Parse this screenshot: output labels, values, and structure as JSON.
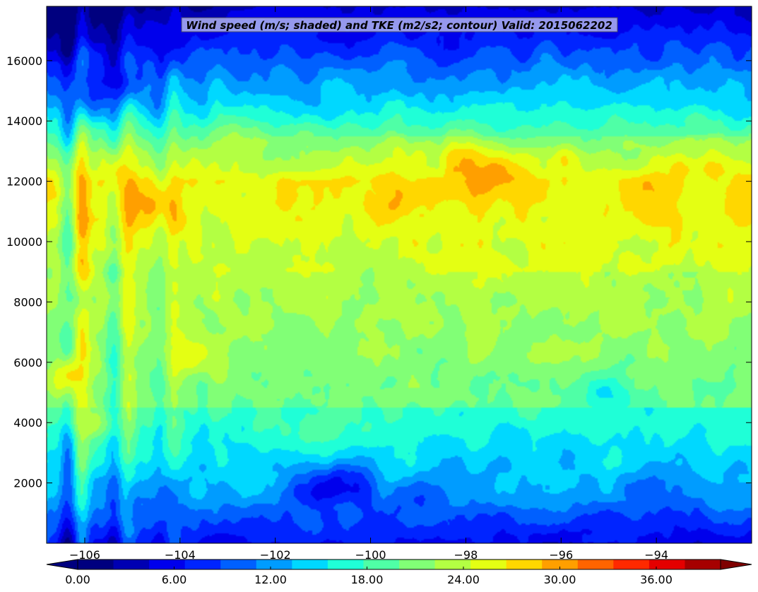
{
  "chart_data": {
    "type": "heatmap",
    "title": "Wind speed (m/s; shaded) and TKE (m2/s2; contour) Valid: 2015062202",
    "xlabel": "",
    "ylabel": "",
    "xlim": [
      -106.8,
      -92.0
    ],
    "ylim": [
      0,
      17800
    ],
    "x_ticks": [
      -106,
      -104,
      -102,
      -100,
      -98,
      -96,
      -94
    ],
    "x_tick_labels": [
      "−106",
      "−104",
      "−102",
      "−100",
      "−98",
      "−96",
      "−94"
    ],
    "y_ticks": [
      2000,
      4000,
      6000,
      8000,
      10000,
      12000,
      14000,
      16000
    ],
    "y_tick_labels": [
      "2000",
      "4000",
      "6000",
      "8000",
      "10000",
      "12000",
      "14000",
      "16000"
    ],
    "colorbar": {
      "levels": [
        0,
        2,
        4,
        6,
        8,
        10,
        12,
        14,
        16,
        18,
        20,
        22,
        24,
        26,
        28,
        30,
        32,
        34,
        36,
        38,
        40
      ],
      "tick_values": [
        0,
        6,
        12,
        18,
        24,
        30,
        36
      ],
      "tick_labels": [
        "0.00",
        "6.00",
        "12.00",
        "18.00",
        "24.00",
        "30.00",
        "36.00"
      ],
      "extend": "both",
      "colormap": "jet",
      "colors": [
        "#00007f",
        "#0000b2",
        "#0000ec",
        "#0024ff",
        "#0060ff",
        "#009cff",
        "#00d8ff",
        "#1fffd7",
        "#4fffa6",
        "#81ff76",
        "#b3ff43",
        "#e4ff13",
        "#ffd700",
        "#ff9f00",
        "#ff6400",
        "#ff2900",
        "#e40000",
        "#a60000"
      ],
      "under_color": "#00007f",
      "over_color": "#7f0000"
    },
    "features": [
      {
        "x": -104.7,
        "y": 11200,
        "value": 30
      },
      {
        "x": -98,
        "y": 12600,
        "value": 30
      },
      {
        "x": -97.5,
        "y": 12000,
        "value": 30
      },
      {
        "x": -93.4,
        "y": 12300,
        "value": 28
      },
      {
        "x": -106.3,
        "y": 5500,
        "value": 28
      },
      {
        "x": -103.8,
        "y": 6200,
        "value": 28
      },
      {
        "x": -99.7,
        "y": 11500,
        "value": 28
      },
      {
        "x": -101.9,
        "y": 11300,
        "value": 27
      },
      {
        "x": -105.3,
        "y": 12200,
        "value": 27
      },
      {
        "x": -99,
        "y": 12700,
        "value": 26
      },
      {
        "x": -96,
        "y": 12500,
        "value": 26
      },
      {
        "x": -103,
        "y": 13200,
        "value": 24
      },
      {
        "x": -100,
        "y": 9000,
        "value": 22
      },
      {
        "x": -101,
        "y": 3800,
        "value": 20
      },
      {
        "x": -95,
        "y": 4800,
        "value": 14
      },
      {
        "x": -96,
        "y": 3000,
        "value": 14
      },
      {
        "x": -100.5,
        "y": 1900,
        "value": 4
      },
      {
        "x": -101.2,
        "y": 1600,
        "value": 6
      },
      {
        "x": -99,
        "y": 1400,
        "value": 8
      },
      {
        "x": -94,
        "y": 1800,
        "value": 10
      },
      {
        "x": -104.5,
        "y": 1500,
        "value": 10
      },
      {
        "x": -100.5,
        "y": 16800,
        "value": 6
      },
      {
        "x": -98.5,
        "y": 16600,
        "value": 6
      },
      {
        "x": -104.5,
        "y": 17000,
        "value": 6
      },
      {
        "x": -105.5,
        "y": 15200,
        "value": 6
      },
      {
        "x": -106.1,
        "y": 15000,
        "value": 10
      },
      {
        "x": -106.4,
        "y": 8000,
        "value": 22
      },
      {
        "x": -105.8,
        "y": 4000,
        "value": 24
      }
    ]
  }
}
